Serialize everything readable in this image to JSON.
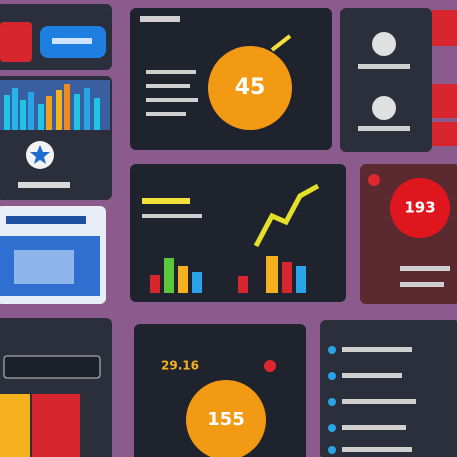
{
  "widgets": {
    "top_score": "45",
    "alert_score": "193",
    "bottom_value": "29.16",
    "bottom_score": "155"
  }
}
